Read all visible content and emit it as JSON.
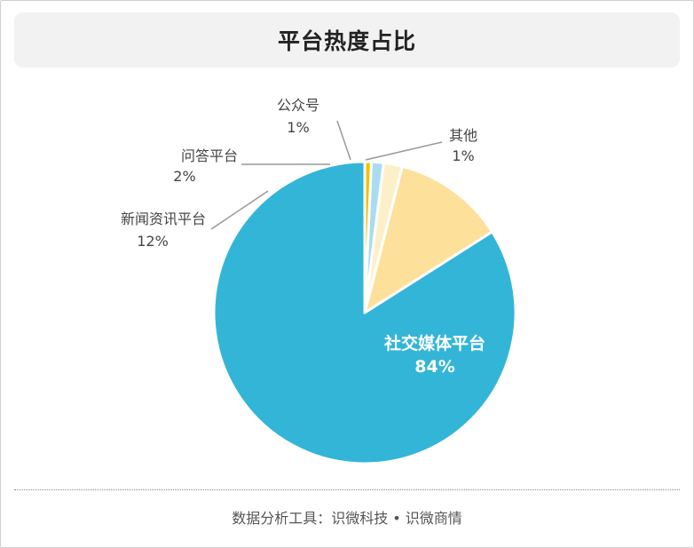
{
  "title": "平台热度占比",
  "footer": "数据分析工具：识微科技 • 识微商情",
  "colors": {
    "social": "#33b5d8",
    "news": "#fde09a",
    "qa": "#fdf0c8",
    "wechat": "#a9dcf0",
    "other": "#f2c200",
    "leader": "#999999",
    "label_dark": "#444444",
    "label_light": "#ffffff"
  },
  "chart_data": {
    "type": "pie",
    "title": "平台热度占比",
    "slices": [
      {
        "label": "社交媒体平台",
        "value": 84,
        "display": "84%",
        "color": "#33b5d8"
      },
      {
        "label": "新闻资讯平台",
        "value": 12,
        "display": "12%",
        "color": "#fde09a"
      },
      {
        "label": "问答平台",
        "value": 2,
        "display": "2%",
        "color": "#fdf0c8"
      },
      {
        "label": "公众号",
        "value": 1.3,
        "display": "1%",
        "color": "#a9dcf0"
      },
      {
        "label": "其他",
        "value": 0.7,
        "display": "1%",
        "color": "#f2c200"
      }
    ],
    "start": "12 o'clock",
    "direction": "counterclockwise",
    "legend": "none"
  }
}
